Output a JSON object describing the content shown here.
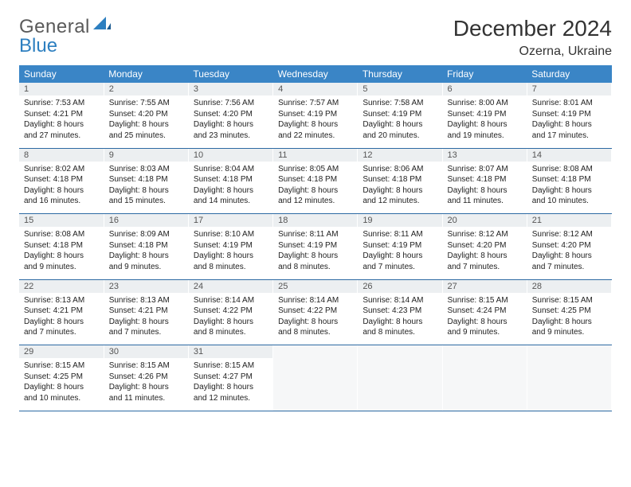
{
  "logo": {
    "word1": "General",
    "word2": "Blue"
  },
  "title": "December 2024",
  "location": "Ozerna, Ukraine",
  "colors": {
    "header_bg": "#3a85c6",
    "header_text": "#ffffff",
    "daynum_bg": "#eceff1",
    "border": "#2d6aa3",
    "logo_gray": "#5a5a5a",
    "logo_blue": "#2d7fc0"
  },
  "typography": {
    "title_fontsize": 28,
    "location_fontsize": 16,
    "weekday_fontsize": 12,
    "daynum_fontsize": 11,
    "cell_fontsize": 10
  },
  "weekdays": [
    "Sunday",
    "Monday",
    "Tuesday",
    "Wednesday",
    "Thursday",
    "Friday",
    "Saturday"
  ],
  "weeks": [
    [
      {
        "day": "1",
        "sunrise": "Sunrise: 7:53 AM",
        "sunset": "Sunset: 4:21 PM",
        "daylight": "Daylight: 8 hours and 27 minutes."
      },
      {
        "day": "2",
        "sunrise": "Sunrise: 7:55 AM",
        "sunset": "Sunset: 4:20 PM",
        "daylight": "Daylight: 8 hours and 25 minutes."
      },
      {
        "day": "3",
        "sunrise": "Sunrise: 7:56 AM",
        "sunset": "Sunset: 4:20 PM",
        "daylight": "Daylight: 8 hours and 23 minutes."
      },
      {
        "day": "4",
        "sunrise": "Sunrise: 7:57 AM",
        "sunset": "Sunset: 4:19 PM",
        "daylight": "Daylight: 8 hours and 22 minutes."
      },
      {
        "day": "5",
        "sunrise": "Sunrise: 7:58 AM",
        "sunset": "Sunset: 4:19 PM",
        "daylight": "Daylight: 8 hours and 20 minutes."
      },
      {
        "day": "6",
        "sunrise": "Sunrise: 8:00 AM",
        "sunset": "Sunset: 4:19 PM",
        "daylight": "Daylight: 8 hours and 19 minutes."
      },
      {
        "day": "7",
        "sunrise": "Sunrise: 8:01 AM",
        "sunset": "Sunset: 4:19 PM",
        "daylight": "Daylight: 8 hours and 17 minutes."
      }
    ],
    [
      {
        "day": "8",
        "sunrise": "Sunrise: 8:02 AM",
        "sunset": "Sunset: 4:18 PM",
        "daylight": "Daylight: 8 hours and 16 minutes."
      },
      {
        "day": "9",
        "sunrise": "Sunrise: 8:03 AM",
        "sunset": "Sunset: 4:18 PM",
        "daylight": "Daylight: 8 hours and 15 minutes."
      },
      {
        "day": "10",
        "sunrise": "Sunrise: 8:04 AM",
        "sunset": "Sunset: 4:18 PM",
        "daylight": "Daylight: 8 hours and 14 minutes."
      },
      {
        "day": "11",
        "sunrise": "Sunrise: 8:05 AM",
        "sunset": "Sunset: 4:18 PM",
        "daylight": "Daylight: 8 hours and 12 minutes."
      },
      {
        "day": "12",
        "sunrise": "Sunrise: 8:06 AM",
        "sunset": "Sunset: 4:18 PM",
        "daylight": "Daylight: 8 hours and 12 minutes."
      },
      {
        "day": "13",
        "sunrise": "Sunrise: 8:07 AM",
        "sunset": "Sunset: 4:18 PM",
        "daylight": "Daylight: 8 hours and 11 minutes."
      },
      {
        "day": "14",
        "sunrise": "Sunrise: 8:08 AM",
        "sunset": "Sunset: 4:18 PM",
        "daylight": "Daylight: 8 hours and 10 minutes."
      }
    ],
    [
      {
        "day": "15",
        "sunrise": "Sunrise: 8:08 AM",
        "sunset": "Sunset: 4:18 PM",
        "daylight": "Daylight: 8 hours and 9 minutes."
      },
      {
        "day": "16",
        "sunrise": "Sunrise: 8:09 AM",
        "sunset": "Sunset: 4:18 PM",
        "daylight": "Daylight: 8 hours and 9 minutes."
      },
      {
        "day": "17",
        "sunrise": "Sunrise: 8:10 AM",
        "sunset": "Sunset: 4:19 PM",
        "daylight": "Daylight: 8 hours and 8 minutes."
      },
      {
        "day": "18",
        "sunrise": "Sunrise: 8:11 AM",
        "sunset": "Sunset: 4:19 PM",
        "daylight": "Daylight: 8 hours and 8 minutes."
      },
      {
        "day": "19",
        "sunrise": "Sunrise: 8:11 AM",
        "sunset": "Sunset: 4:19 PM",
        "daylight": "Daylight: 8 hours and 7 minutes."
      },
      {
        "day": "20",
        "sunrise": "Sunrise: 8:12 AM",
        "sunset": "Sunset: 4:20 PM",
        "daylight": "Daylight: 8 hours and 7 minutes."
      },
      {
        "day": "21",
        "sunrise": "Sunrise: 8:12 AM",
        "sunset": "Sunset: 4:20 PM",
        "daylight": "Daylight: 8 hours and 7 minutes."
      }
    ],
    [
      {
        "day": "22",
        "sunrise": "Sunrise: 8:13 AM",
        "sunset": "Sunset: 4:21 PM",
        "daylight": "Daylight: 8 hours and 7 minutes."
      },
      {
        "day": "23",
        "sunrise": "Sunrise: 8:13 AM",
        "sunset": "Sunset: 4:21 PM",
        "daylight": "Daylight: 8 hours and 7 minutes."
      },
      {
        "day": "24",
        "sunrise": "Sunrise: 8:14 AM",
        "sunset": "Sunset: 4:22 PM",
        "daylight": "Daylight: 8 hours and 8 minutes."
      },
      {
        "day": "25",
        "sunrise": "Sunrise: 8:14 AM",
        "sunset": "Sunset: 4:22 PM",
        "daylight": "Daylight: 8 hours and 8 minutes."
      },
      {
        "day": "26",
        "sunrise": "Sunrise: 8:14 AM",
        "sunset": "Sunset: 4:23 PM",
        "daylight": "Daylight: 8 hours and 8 minutes."
      },
      {
        "day": "27",
        "sunrise": "Sunrise: 8:15 AM",
        "sunset": "Sunset: 4:24 PM",
        "daylight": "Daylight: 8 hours and 9 minutes."
      },
      {
        "day": "28",
        "sunrise": "Sunrise: 8:15 AM",
        "sunset": "Sunset: 4:25 PM",
        "daylight": "Daylight: 8 hours and 9 minutes."
      }
    ],
    [
      {
        "day": "29",
        "sunrise": "Sunrise: 8:15 AM",
        "sunset": "Sunset: 4:25 PM",
        "daylight": "Daylight: 8 hours and 10 minutes."
      },
      {
        "day": "30",
        "sunrise": "Sunrise: 8:15 AM",
        "sunset": "Sunset: 4:26 PM",
        "daylight": "Daylight: 8 hours and 11 minutes."
      },
      {
        "day": "31",
        "sunrise": "Sunrise: 8:15 AM",
        "sunset": "Sunset: 4:27 PM",
        "daylight": "Daylight: 8 hours and 12 minutes."
      },
      null,
      null,
      null,
      null
    ]
  ]
}
